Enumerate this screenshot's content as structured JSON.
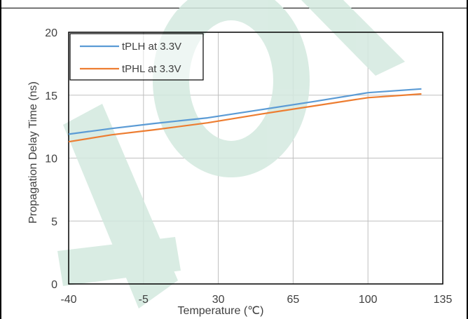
{
  "chart_data": {
    "type": "line",
    "xlabel": "Temperature (℃)",
    "ylabel": "Propagation Delay Time (ns)",
    "xlim": [
      -40,
      135
    ],
    "ylim": [
      0,
      20
    ],
    "x_ticks": [
      -40,
      -5,
      30,
      65,
      100,
      135
    ],
    "y_ticks": [
      0,
      5,
      10,
      15,
      20
    ],
    "grid": true,
    "legend": "top-left",
    "series": [
      {
        "name": "tPLH at 3.3V",
        "color": "#5b9bd5",
        "x": [
          -40,
          -20,
          0,
          25,
          50,
          75,
          100,
          125
        ],
        "y": [
          11.9,
          12.35,
          12.75,
          13.2,
          13.85,
          14.5,
          15.2,
          15.5
        ]
      },
      {
        "name": "tPHL at 3.3V",
        "color": "#ed7d31",
        "x": [
          -40,
          -20,
          0,
          25,
          50,
          75,
          100,
          125
        ],
        "y": [
          11.3,
          11.85,
          12.25,
          12.8,
          13.5,
          14.15,
          14.8,
          15.1
        ]
      }
    ],
    "watermark": "FOI"
  }
}
